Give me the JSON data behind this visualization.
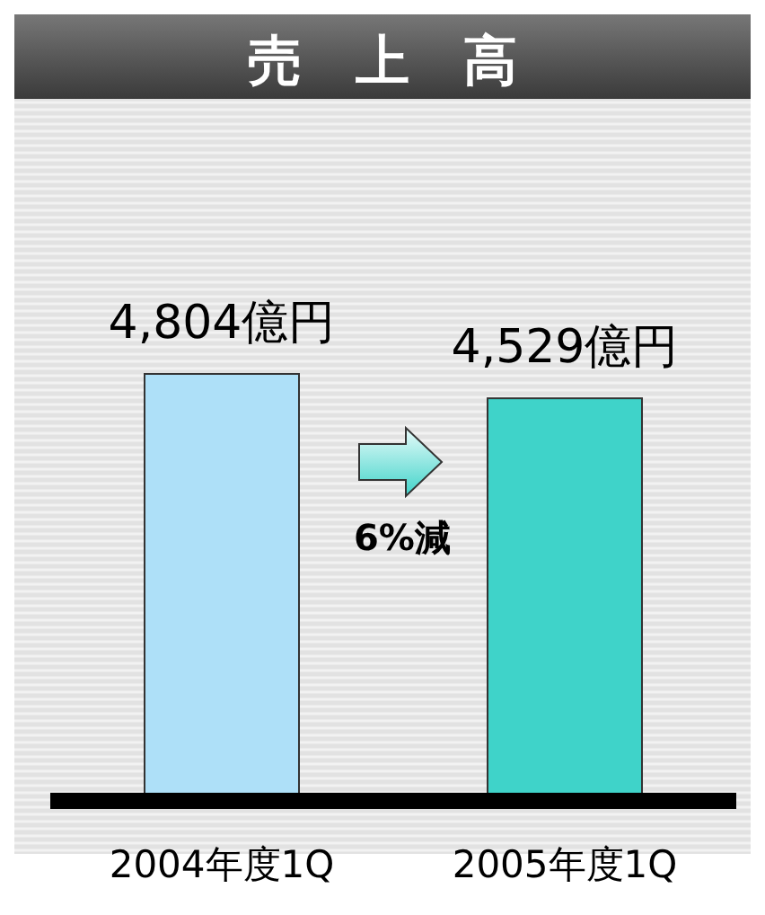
{
  "chart_data": {
    "type": "bar",
    "title": "売　上　高",
    "categories": [
      "2004年度1Q",
      "2005年度1Q"
    ],
    "values": [
      4804,
      4529
    ],
    "value_labels": [
      "4,804億円",
      "4,529億円"
    ],
    "colors": [
      "#aee0f8",
      "#3fd3c9"
    ],
    "annotations": [
      "6%減"
    ]
  }
}
